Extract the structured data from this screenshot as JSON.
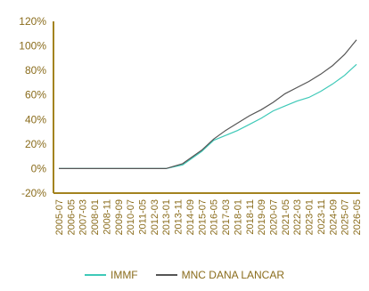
{
  "chart_data": {
    "type": "line",
    "ylim": [
      -20,
      120
    ],
    "y_ticks": [
      "-20%",
      "0%",
      "20%",
      "40%",
      "60%",
      "80%",
      "100%",
      "120%"
    ],
    "y_tick_values": [
      -20,
      0,
      20,
      40,
      60,
      80,
      100,
      120
    ],
    "x_ticks": [
      "2005-07",
      "2006-05",
      "2007-03",
      "2008-01",
      "2008-11",
      "2009-09",
      "2010-07",
      "2011-05",
      "2012-03",
      "2013-01",
      "2013-11",
      "2014-09",
      "2015-07",
      "2016-05",
      "2017-03",
      "2018-01",
      "2018-11",
      "2019-09",
      "2020-07",
      "2021-05",
      "2022-03",
      "2023-01",
      "2023-11",
      "2024-09",
      "2025-07",
      "2026-05"
    ],
    "x": [
      "2005-07",
      "2013-01",
      "2014-03",
      "2015-07",
      "2016-05",
      "2017-03",
      "2018-01",
      "2018-11",
      "2019-09",
      "2020-07",
      "2021-05",
      "2022-03",
      "2023-01",
      "2023-11",
      "2024-09",
      "2025-07",
      "2026-05"
    ],
    "series": [
      {
        "name": "IMMF",
        "color": "#3ec9b8",
        "values": [
          0,
          0,
          3,
          14,
          23,
          27,
          31,
          36,
          41,
          47,
          51,
          55,
          58,
          63,
          69,
          76,
          85
        ]
      },
      {
        "name": "MNC DANA LANCAR",
        "color": "#555555",
        "values": [
          0,
          0,
          4,
          15,
          24,
          31,
          37,
          43,
          48,
          54,
          61,
          66,
          71,
          77,
          84,
          93,
          105
        ]
      }
    ],
    "axis_color": "#a3831f",
    "grid": false,
    "legend_position": "bottom"
  }
}
